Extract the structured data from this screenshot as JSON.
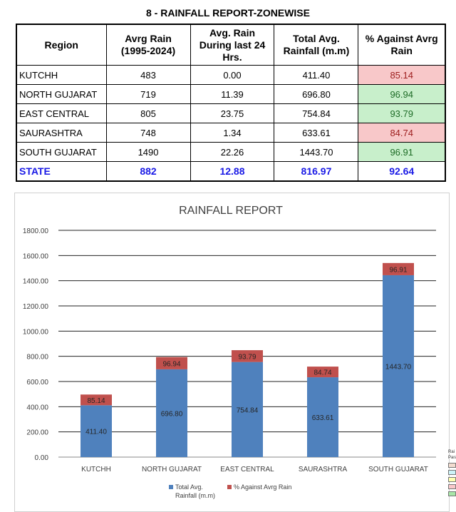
{
  "report": {
    "title": "8 - RAINFALL REPORT-ZONEWISE"
  },
  "table": {
    "headers": [
      "Region",
      "Avrg Rain (1995-2024)",
      "Avg. Rain During last 24 Hrs.",
      "Total Avg. Rainfall (m.m)",
      "% Against Avrg Rain"
    ],
    "rows": [
      {
        "region": "KUTCHH",
        "avg_rain": "483",
        "last_24": "0.00",
        "total": "411.40",
        "pct": "85.14",
        "status": "bad"
      },
      {
        "region": "NORTH GUJARAT",
        "avg_rain": "719",
        "last_24": "11.39",
        "total": "696.80",
        "pct": "96.94",
        "status": "good"
      },
      {
        "region": "EAST CENTRAL",
        "avg_rain": "805",
        "last_24": "23.75",
        "total": "754.84",
        "pct": "93.79",
        "status": "good"
      },
      {
        "region": "SAURASHTRA",
        "avg_rain": "748",
        "last_24": "1.34",
        "total": "633.61",
        "pct": "84.74",
        "status": "bad"
      },
      {
        "region": "SOUTH GUJARAT",
        "avg_rain": "1490",
        "last_24": "22.26",
        "total": "1443.70",
        "pct": "96.91",
        "status": "good"
      }
    ],
    "state": {
      "region": "STATE",
      "avg_rain": "882",
      "last_24": "12.88",
      "total": "816.97",
      "pct": "92.64"
    }
  },
  "colors": {
    "bad_bg": "#f8c8c9",
    "bad_text": "#9c1c1c",
    "good_bg": "#c8efcb",
    "good_text": "#1d6b26",
    "state_text": "#1a1ae6",
    "series_total": "#4f81bd",
    "series_pct": "#c0504d"
  },
  "chart_data": {
    "type": "bar",
    "stacked": true,
    "title": "RAINFALL REPORT",
    "categories": [
      "KUTCHH",
      "NORTH GUJARAT",
      "EAST CENTRAL",
      "SAURASHTRA",
      "SOUTH GUJARAT"
    ],
    "series": [
      {
        "name": "Total Avg. Rainfall (m.m)",
        "values": [
          411.4,
          696.8,
          754.84,
          633.61,
          1443.7
        ]
      },
      {
        "name": "% Against Avrg Rain",
        "values": [
          85.14,
          96.94,
          93.79,
          84.74,
          96.91
        ]
      }
    ],
    "yticks": [
      "0.00",
      "200.00",
      "400.00",
      "600.00",
      "800.00",
      "1000.00",
      "1200.00",
      "1400.00",
      "1600.00",
      "1800.00"
    ],
    "ylim": [
      0,
      1800
    ],
    "grid": true,
    "legend": "bottom"
  },
  "edge_fragment": {
    "line1": "Rai",
    "line2": "Para",
    "swatches": [
      "#f2dcd0",
      "#ccf2f7",
      "#ffffb0",
      "#f8c8c9",
      "#a8e6a8"
    ]
  }
}
